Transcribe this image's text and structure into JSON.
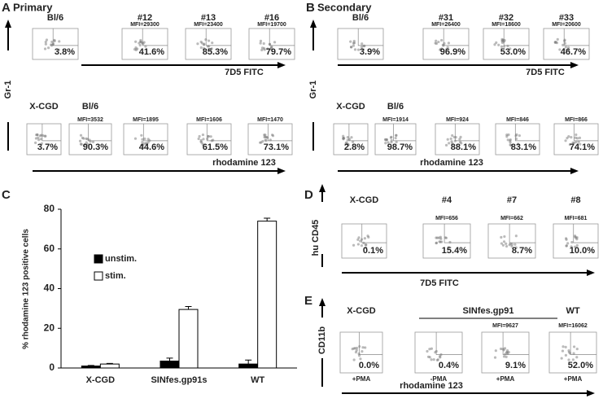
{
  "panels": {
    "A": {
      "label": "A",
      "title": "Primary",
      "y_label": "Gr-1",
      "rows": [
        {
          "x_label": "7D5 FITC",
          "plots": [
            {
              "header": "Bl/6",
              "pct": "3.8%"
            },
            {
              "header": "#12",
              "mfi": "MFI=29300",
              "pct": "41.6%"
            },
            {
              "header": "#13",
              "mfi": "MFI=23400",
              "pct": "85.3%"
            },
            {
              "header": "#16",
              "mfi": "MFI=19700",
              "pct": "79.7%"
            }
          ]
        },
        {
          "x_label": "rhodamine 123",
          "plots": [
            {
              "header": "X-CGD",
              "pct": "3.7%"
            },
            {
              "header": "Bl/6",
              "mfi": "MFI=3532",
              "pct": "90.3%"
            },
            {
              "mfi": "MFI=1895",
              "pct": "44.6%"
            },
            {
              "mfi": "MFI=1606",
              "pct": "61.5%"
            },
            {
              "mfi": "MFI=1470",
              "pct": "73.1%"
            }
          ]
        }
      ]
    },
    "B": {
      "label": "B",
      "title": "Secondary",
      "y_label": "Gr-1",
      "rows": [
        {
          "x_label": "7D5 FITC",
          "plots": [
            {
              "header": "Bl/6",
              "pct": "3.9%"
            },
            {
              "header": "#31",
              "mfi": "MFI=26400",
              "pct": "96.9%"
            },
            {
              "header": "#32",
              "mfi": "MFI=18600",
              "pct": "53.0%"
            },
            {
              "header": "#33",
              "mfi": "MFI=20600",
              "pct": "46.7%"
            }
          ]
        },
        {
          "x_label": "rhodamine 123",
          "plots": [
            {
              "header": "X-CGD",
              "pct": "2.8%"
            },
            {
              "header": "Bl/6",
              "mfi": "MFI=1914",
              "pct": "98.7%"
            },
            {
              "mfi": "MFI=924",
              "pct": "88.1%"
            },
            {
              "mfi": "MFI=846",
              "pct": "83.1%"
            },
            {
              "mfi": "MFI=866",
              "pct": "74.1%"
            }
          ]
        }
      ]
    },
    "D": {
      "label": "D",
      "y_label": "hu CD45",
      "rows": [
        {
          "x_label": "7D5 FITC",
          "plots": [
            {
              "header": "X-CGD",
              "pct": "0.1%"
            },
            {
              "header": "#4",
              "mfi": "MFI=656",
              "pct": "15.4%"
            },
            {
              "header": "#7",
              "mfi": "MFI=662",
              "pct": "8.7%"
            },
            {
              "header": "#8",
              "mfi": "MFI=681",
              "pct": "10.0%"
            }
          ]
        }
      ]
    },
    "E": {
      "label": "E",
      "y_label": "CD11b",
      "group_label": "SINfes.gp91",
      "rows": [
        {
          "x_label": "rhodamine 123",
          "plots": [
            {
              "header": "X-CGD",
              "pct": "0.0%",
              "treatment": "+PMA"
            },
            {
              "pct": "0.4%",
              "treatment": "-PMA"
            },
            {
              "mfi": "MFI=9627",
              "pct": "9.1%",
              "treatment": "+PMA"
            },
            {
              "header": "WT",
              "mfi": "MFI=16062",
              "pct": "52.0%",
              "treatment": "+PMA"
            }
          ]
        }
      ]
    }
  },
  "chart_data": {
    "type": "bar",
    "label": "C",
    "y_label": "% rhodamine 123 positive cells",
    "categories": [
      "X-CGD",
      "SINfes.gp91s",
      "WT"
    ],
    "series": [
      {
        "name": "unstim.",
        "color": "#000000",
        "values": [
          1,
          3.5,
          2
        ],
        "errors": [
          0.3,
          1.5,
          2
        ]
      },
      {
        "name": "stim.",
        "color": "#ffffff",
        "values": [
          2,
          29.5,
          74
        ],
        "errors": [
          0.3,
          1.5,
          1.5
        ]
      }
    ],
    "ylim": [
      0,
      80
    ],
    "yticks": [
      0,
      20,
      40,
      60,
      80
    ]
  }
}
